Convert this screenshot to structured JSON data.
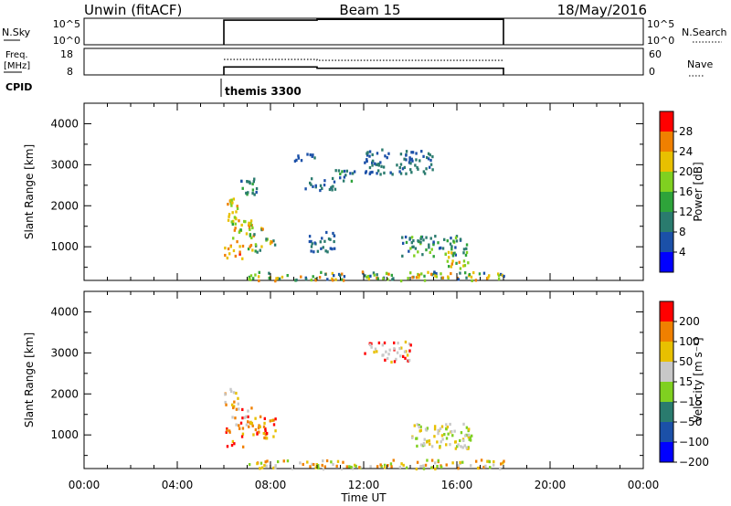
{
  "header": {
    "station": "Unwin (fitACF)",
    "beam": "Beam 15",
    "date": "18/May/2016"
  },
  "labels": {
    "nsky": "N.Sky",
    "freq_line1": "Freq.",
    "freq_line2": "[MHz]",
    "cpid": "CPID",
    "nsearch": "N.Search",
    "nave": "Nave",
    "xlabel": "Time UT",
    "ylabel": "Slant Range [km]",
    "power_label": "Power [dB]",
    "velocity_label": "Velocity [m s⁻¹]",
    "cpid_value": "themis 3300"
  },
  "small_ticks": {
    "nsky_top": "10^5",
    "nsky_bottom": "10^0",
    "freq_top": "18",
    "freq_bottom": "8",
    "nave_top": "60",
    "nave_bottom": "0"
  },
  "chart_data": [
    {
      "type": "line",
      "name": "noise_panel",
      "x_range_hours": [
        0,
        24
      ],
      "segments": [
        {
          "x": [
            6,
            10,
            10,
            18
          ],
          "y_norm": [
            0.93,
            0.93,
            0.96,
            0.96
          ],
          "style": "solid"
        }
      ],
      "data_start_hour": 6,
      "data_end_hour": 18
    },
    {
      "type": "line",
      "name": "freq_nave_panel",
      "x_range_hours": [
        0,
        24
      ],
      "series": [
        {
          "style": "solid",
          "x": [
            6,
            10,
            10,
            18
          ],
          "y_mhz": [
            11.0,
            11.0,
            10.5,
            10.5
          ]
        },
        {
          "style": "dotted",
          "x": [
            6,
            10,
            10,
            18
          ],
          "y_nave": [
            35,
            35,
            33,
            33
          ]
        }
      ]
    },
    {
      "type": "heatmap",
      "name": "power",
      "x_range_hours": [
        0,
        24
      ],
      "ylim": [
        180,
        4500
      ],
      "yticks": [
        1000,
        2000,
        3000,
        4000
      ],
      "xticks": [
        "00:00",
        "04:00",
        "08:00",
        "12:00",
        "16:00",
        "20:00",
        "00:00"
      ],
      "colorbar": {
        "ticks": [
          4,
          8,
          12,
          16,
          20,
          24,
          28
        ],
        "range": [
          0,
          32
        ],
        "colors": [
          "#0000ff",
          "#1b50a8",
          "#2a7b6e",
          "#2ea33a",
          "#80d020",
          "#e8c000",
          "#f08000",
          "#ff0000"
        ]
      },
      "regions": [
        {
          "t": [
            6.0,
            6.6
          ],
          "r": [
            1600,
            2200
          ],
          "v": [
            16,
            26
          ]
        },
        {
          "t": [
            6.0,
            6.8
          ],
          "r": [
            700,
            1200
          ],
          "v": [
            20,
            30
          ]
        },
        {
          "t": [
            6.2,
            7.2
          ],
          "r": [
            1200,
            1700
          ],
          "v": [
            14,
            26
          ]
        },
        {
          "t": [
            7.0,
            8.2
          ],
          "r": [
            900,
            1500
          ],
          "v": [
            10,
            28
          ]
        },
        {
          "t": [
            6.6,
            7.4
          ],
          "r": [
            2300,
            2700
          ],
          "v": [
            6,
            16
          ]
        },
        {
          "t": [
            9.2,
            10.8
          ],
          "r": [
            2400,
            2700
          ],
          "v": [
            4,
            12
          ]
        },
        {
          "t": [
            10.6,
            11.6
          ],
          "r": [
            2600,
            2900
          ],
          "v": [
            4,
            14
          ]
        },
        {
          "t": [
            12.0,
            15.0
          ],
          "r": [
            2800,
            3400
          ],
          "v": [
            4,
            12
          ]
        },
        {
          "t": [
            8.8,
            10.0
          ],
          "r": [
            3100,
            3300
          ],
          "v": [
            4,
            10
          ]
        },
        {
          "t": [
            9.6,
            10.8
          ],
          "r": [
            900,
            1400
          ],
          "v": [
            4,
            12
          ]
        },
        {
          "t": [
            13.6,
            16.4
          ],
          "r": [
            800,
            1300
          ],
          "v": [
            6,
            18
          ]
        },
        {
          "t": [
            15.4,
            16.6
          ],
          "r": [
            500,
            900
          ],
          "v": [
            14,
            26
          ]
        },
        {
          "t": [
            7.0,
            18.0
          ],
          "r": [
            200,
            420
          ],
          "v": [
            4,
            28
          ]
        }
      ]
    },
    {
      "type": "heatmap",
      "name": "velocity",
      "x_range_hours": [
        0,
        24
      ],
      "ylim": [
        180,
        4500
      ],
      "yticks": [
        1000,
        2000,
        3000,
        4000
      ],
      "xticks": [
        "00:00",
        "04:00",
        "08:00",
        "12:00",
        "16:00",
        "20:00",
        "00:00"
      ],
      "colorbar": {
        "ticks": [
          "200",
          "100",
          "50",
          "15",
          "−15",
          "−50",
          "−100",
          "−200"
        ],
        "colors": [
          "#0000ff",
          "#1b50a8",
          "#2a7b6e",
          "#80d020",
          "#c8c8c8",
          "#e8c000",
          "#f08000",
          "#ff0000"
        ]
      },
      "regions": [
        {
          "t": [
            6.0,
            6.6
          ],
          "r": [
            1600,
            2200
          ],
          "c": [
            "#c8c8c8",
            "#e8c000",
            "#f08000"
          ]
        },
        {
          "t": [
            6.0,
            6.8
          ],
          "r": [
            700,
            1200
          ],
          "c": [
            "#f08000",
            "#ff0000",
            "#e8c000"
          ]
        },
        {
          "t": [
            6.2,
            7.2
          ],
          "r": [
            1200,
            1700
          ],
          "c": [
            "#ff0000",
            "#f08000",
            "#c8c8c8"
          ]
        },
        {
          "t": [
            7.0,
            8.2
          ],
          "r": [
            900,
            1500
          ],
          "c": [
            "#ff0000",
            "#f08000",
            "#e8c000"
          ]
        },
        {
          "t": [
            12.0,
            14.0
          ],
          "r": [
            2800,
            3300
          ],
          "c": [
            "#e8c000",
            "#c8c8c8",
            "#ff0000"
          ]
        },
        {
          "t": [
            14.0,
            16.6
          ],
          "r": [
            700,
            1300
          ],
          "c": [
            "#c8c8c8",
            "#e8c000",
            "#80d020"
          ]
        },
        {
          "t": [
            7.0,
            18.0
          ],
          "r": [
            200,
            420
          ],
          "c": [
            "#80d020",
            "#e8c000",
            "#c8c8c8",
            "#f08000"
          ]
        }
      ]
    }
  ]
}
